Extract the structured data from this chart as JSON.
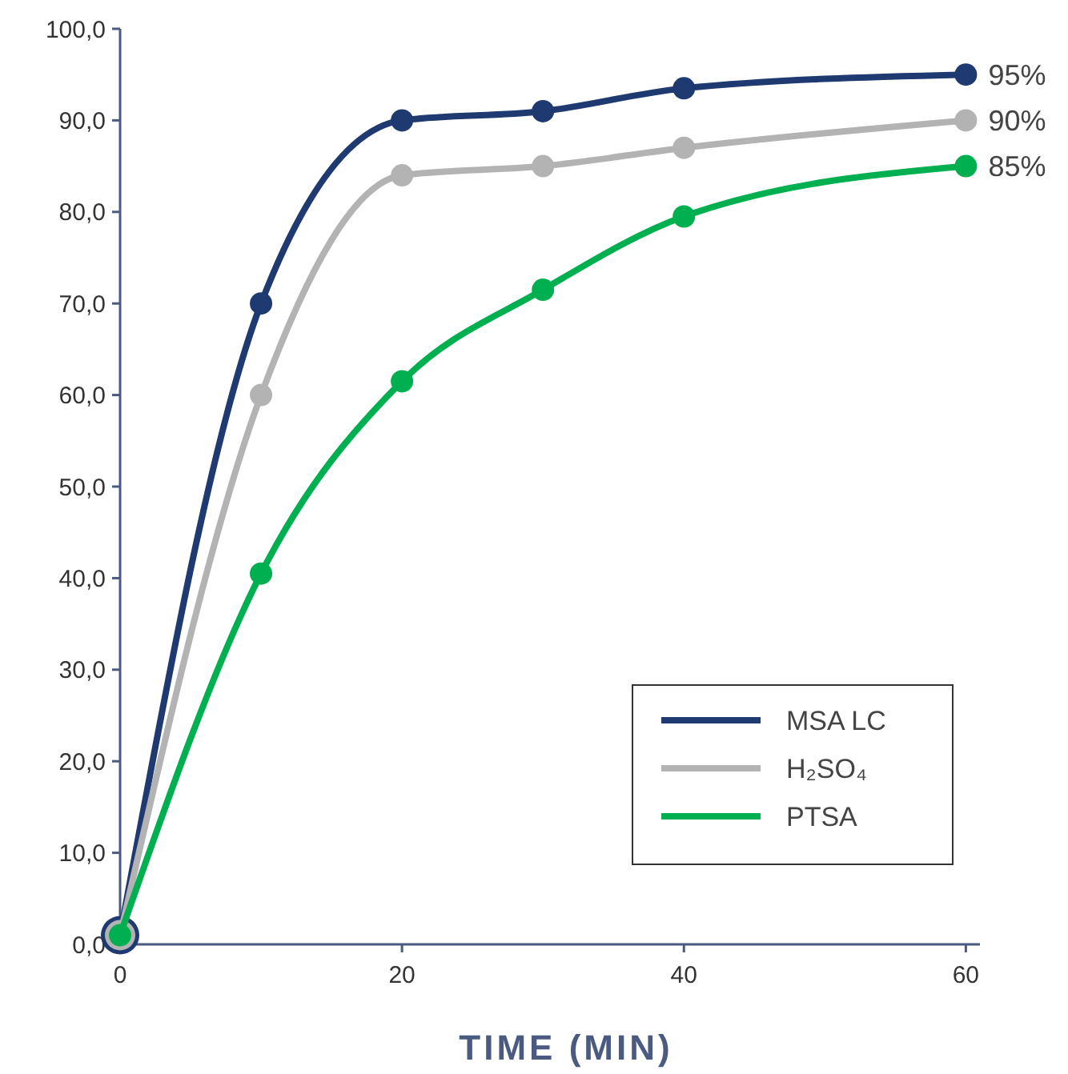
{
  "chart_data": {
    "type": "line",
    "xlabel": "TIME (MIN)",
    "x": [
      0,
      10,
      20,
      30,
      40,
      60
    ],
    "series": [
      {
        "name": "MSA LC",
        "color": "#1f3a70",
        "values": [
          1,
          70,
          90,
          91,
          93.5,
          95
        ]
      },
      {
        "name": "H₂SO₄",
        "color": "#b3b3b3",
        "values": [
          1,
          60,
          84,
          85,
          87,
          90
        ]
      },
      {
        "name": "PTSA",
        "color": "#00b050",
        "values": [
          1,
          40.5,
          61.5,
          71.5,
          79.5,
          85
        ]
      }
    ],
    "xlim": [
      0,
      61
    ],
    "xticks": [
      0,
      20,
      40,
      60
    ],
    "ylim": [
      0,
      100
    ],
    "yticks": [
      {
        "value": 0,
        "label": "0,0"
      },
      {
        "value": 10,
        "label": "10,0"
      },
      {
        "value": 20,
        "label": "20,0"
      },
      {
        "value": 30,
        "label": "30,0"
      },
      {
        "value": 40,
        "label": "40,0"
      },
      {
        "value": 50,
        "label": "50,0"
      },
      {
        "value": 60,
        "label": "60,0"
      },
      {
        "value": 70,
        "label": "70,0"
      },
      {
        "value": 80,
        "label": "80,0"
      },
      {
        "value": 90,
        "label": "90,0"
      },
      {
        "value": 100,
        "label": "100,0"
      }
    ],
    "annotations": [
      "95%",
      "90%",
      "85%"
    ],
    "marker": "circle",
    "grid": false,
    "legend": "bottom right"
  }
}
